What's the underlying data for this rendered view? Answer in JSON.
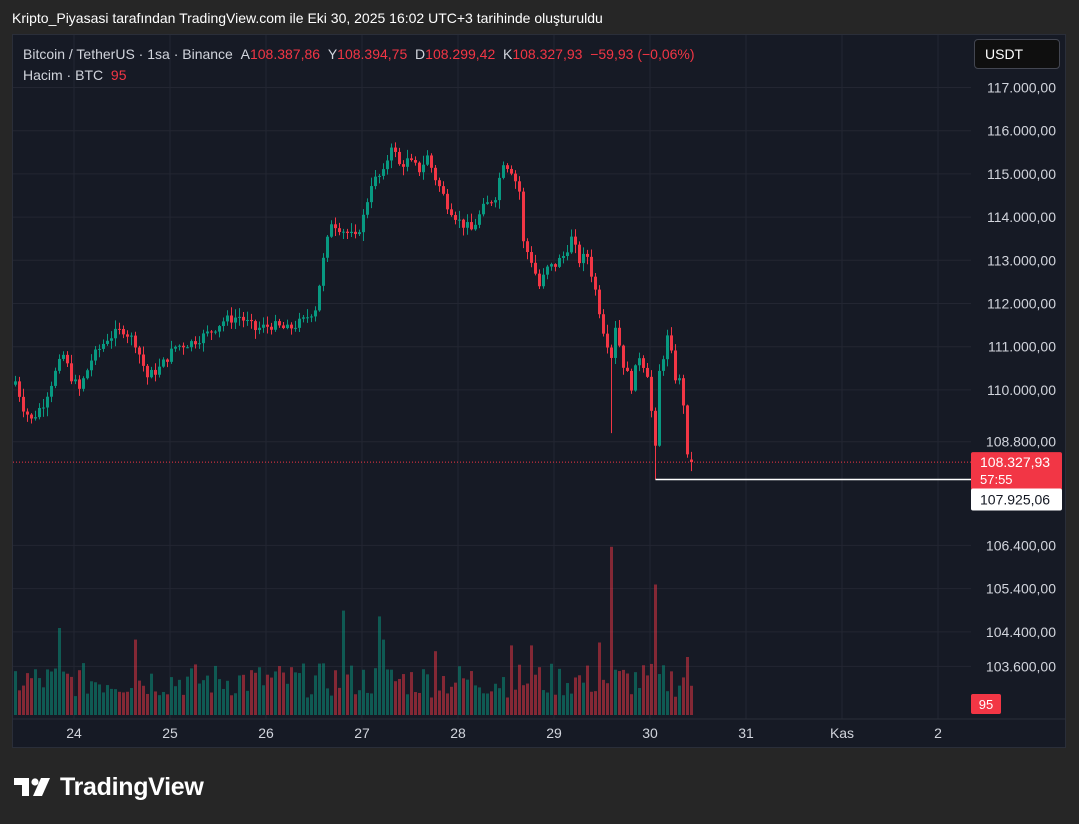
{
  "caption": "Kripto_Piyasasi tarafından TradingView.com ile Eki 30, 2025 16:02 UTC+3 tarihinde oluşturuldu",
  "legend": {
    "symbol": "Bitcoin / TetherUS · 1sa · Binance",
    "open_label": "A",
    "open": "108.387,86",
    "high_label": "Y",
    "high": "108.394,75",
    "low_label": "D",
    "low": "108.299,42",
    "close_label": "K",
    "close": "108.327,93",
    "change": "−59,93 (−0,06%)",
    "volume_label": "Hacim · BTC",
    "volume_value": "95"
  },
  "currency_button": "USDT",
  "brand": "TradingView",
  "colors": {
    "up": "#089981",
    "down": "#f23645",
    "background": "#161a25",
    "grid": "#232632"
  },
  "chart_data": {
    "type": "candlestick",
    "title": "Bitcoin / TetherUS · 1sa · Binance",
    "x_ticks": [
      "24",
      "25",
      "26",
      "27",
      "28",
      "29",
      "30",
      "31",
      "Kas",
      "2"
    ],
    "y_ticks": [
      "117.000,00",
      "116.000,00",
      "115.000,00",
      "114.000,00",
      "113.000,00",
      "112.000,00",
      "111.000,00",
      "110.000,00",
      "108.800,00",
      "106.400,00",
      "105.400,00",
      "104.400,00",
      "103.600,00"
    ],
    "y_tick_values": [
      117000,
      116000,
      115000,
      114000,
      113000,
      112000,
      111000,
      110000,
      108800,
      106400,
      105400,
      104400,
      103600
    ],
    "price_range": [
      103000,
      117500
    ],
    "last_price_label": "108.327,93",
    "countdown_label": "57:55",
    "marked_level_label": "107.925,06",
    "marked_level": 107925.06,
    "volume_label": "95",
    "keypoints": [
      {
        "x": 0,
        "y": 110200
      },
      {
        "x": 2,
        "y": 109600
      },
      {
        "x": 4,
        "y": 109300
      },
      {
        "x": 7,
        "y": 109700
      },
      {
        "x": 10,
        "y": 110400
      },
      {
        "x": 12,
        "y": 110800
      },
      {
        "x": 14,
        "y": 110300
      },
      {
        "x": 16,
        "y": 110000
      },
      {
        "x": 19,
        "y": 110700
      },
      {
        "x": 23,
        "y": 111200
      },
      {
        "x": 27,
        "y": 111400
      },
      {
        "x": 30,
        "y": 111100
      },
      {
        "x": 33,
        "y": 110300
      },
      {
        "x": 36,
        "y": 110500
      },
      {
        "x": 40,
        "y": 111000
      },
      {
        "x": 44,
        "y": 111100
      },
      {
        "x": 48,
        "y": 111300
      },
      {
        "x": 52,
        "y": 111600
      },
      {
        "x": 56,
        "y": 111700
      },
      {
        "x": 60,
        "y": 111400
      },
      {
        "x": 64,
        "y": 111500
      },
      {
        "x": 68,
        "y": 111400
      },
      {
        "x": 72,
        "y": 111600
      },
      {
        "x": 75,
        "y": 111900
      },
      {
        "x": 77,
        "y": 113000
      },
      {
        "x": 79,
        "y": 113900
      },
      {
        "x": 82,
        "y": 113700
      },
      {
        "x": 85,
        "y": 113500
      },
      {
        "x": 87,
        "y": 114000
      },
      {
        "x": 89,
        "y": 114800
      },
      {
        "x": 92,
        "y": 115000
      },
      {
        "x": 94,
        "y": 115700
      },
      {
        "x": 96,
        "y": 115200
      },
      {
        "x": 98,
        "y": 115300
      },
      {
        "x": 101,
        "y": 115100
      },
      {
        "x": 103,
        "y": 115400
      },
      {
        "x": 105,
        "y": 114900
      },
      {
        "x": 108,
        "y": 114300
      },
      {
        "x": 111,
        "y": 113900
      },
      {
        "x": 114,
        "y": 113700
      },
      {
        "x": 117,
        "y": 114200
      },
      {
        "x": 120,
        "y": 114500
      },
      {
        "x": 122,
        "y": 115300
      },
      {
        "x": 124,
        "y": 115100
      },
      {
        "x": 126,
        "y": 114600
      },
      {
        "x": 127,
        "y": 113400
      },
      {
        "x": 129,
        "y": 113000
      },
      {
        "x": 131,
        "y": 112400
      },
      {
        "x": 133,
        "y": 112800
      },
      {
        "x": 135,
        "y": 112900
      },
      {
        "x": 137,
        "y": 113100
      },
      {
        "x": 139,
        "y": 113500
      },
      {
        "x": 141,
        "y": 113000
      },
      {
        "x": 143,
        "y": 113100
      },
      {
        "x": 145,
        "y": 112300
      },
      {
        "x": 147,
        "y": 111400
      },
      {
        "x": 149,
        "y": 110800
      },
      {
        "x": 150,
        "y": 111500
      },
      {
        "x": 152,
        "y": 110600
      },
      {
        "x": 154,
        "y": 110100
      },
      {
        "x": 156,
        "y": 110800
      },
      {
        "x": 158,
        "y": 110400
      },
      {
        "x": 160,
        "y": 108600
      },
      {
        "x": 161,
        "y": 110400
      },
      {
        "x": 163,
        "y": 111200
      },
      {
        "x": 164,
        "y": 110800
      },
      {
        "x": 165,
        "y": 110300
      },
      {
        "x": 166,
        "y": 110200
      },
      {
        "x": 167,
        "y": 109700
      },
      {
        "x": 168,
        "y": 108400
      },
      {
        "x": 169,
        "y": 108328
      }
    ],
    "volume_spikes": [
      {
        "i": 11,
        "v": 30
      },
      {
        "i": 30,
        "v": 26
      },
      {
        "i": 82,
        "v": 36
      },
      {
        "i": 91,
        "v": 34
      },
      {
        "i": 92,
        "v": 26
      },
      {
        "i": 105,
        "v": 22
      },
      {
        "i": 124,
        "v": 24
      },
      {
        "i": 129,
        "v": 24
      },
      {
        "i": 146,
        "v": 25
      },
      {
        "i": 149,
        "v": 58
      },
      {
        "i": 160,
        "v": 45
      },
      {
        "i": 168,
        "v": 20
      }
    ]
  }
}
